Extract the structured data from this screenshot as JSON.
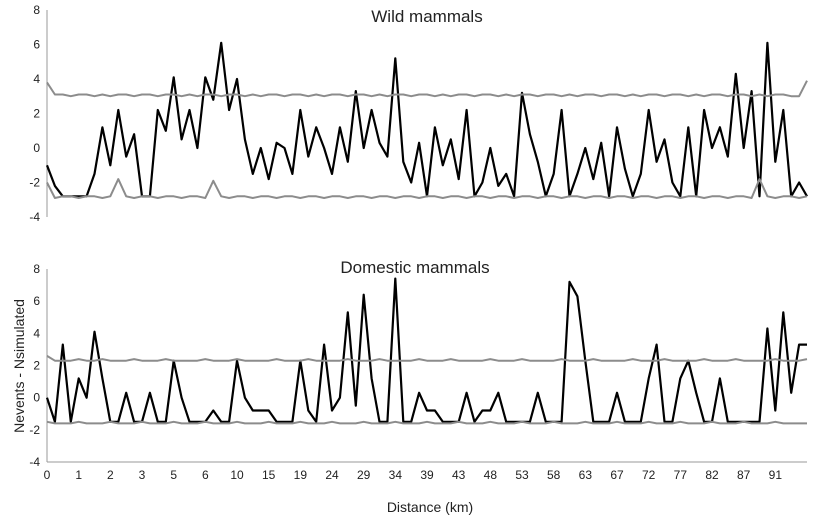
{
  "chart_data": [
    {
      "type": "line",
      "title": "Wild mammals",
      "xlabel": "",
      "ylabel": "",
      "ylim": [
        -4,
        8
      ],
      "yticks": [
        "-4",
        "-2",
        "0",
        "2",
        "4",
        "6",
        "8"
      ],
      "xlim": [
        0,
        96
      ],
      "grid": false,
      "x": [
        0,
        1,
        2,
        3,
        4,
        5,
        6,
        7,
        8,
        9,
        10,
        11,
        12,
        13,
        14,
        15,
        16,
        17,
        18,
        19,
        20,
        21,
        22,
        23,
        24,
        25,
        26,
        27,
        28,
        29,
        30,
        31,
        32,
        33,
        34,
        35,
        36,
        37,
        38,
        39,
        40,
        41,
        42,
        43,
        44,
        45,
        46,
        47,
        48,
        49,
        50,
        51,
        52,
        53,
        54,
        55,
        56,
        57,
        58,
        59,
        60,
        61,
        62,
        63,
        64,
        65,
        66,
        67,
        68,
        69,
        70,
        71,
        72,
        73,
        74,
        75,
        76,
        77,
        78,
        79,
        80,
        81,
        82,
        83,
        84,
        85,
        86,
        87,
        88,
        89,
        90,
        91,
        92,
        93,
        94,
        95,
        96
      ],
      "series": [
        {
          "name": "",
          "color": "#000000",
          "values": [
            -1.0,
            -2.2,
            -2.8,
            -2.8,
            -2.8,
            -2.8,
            -1.5,
            1.2,
            -1.0,
            2.2,
            -0.5,
            0.8,
            -2.8,
            -2.8,
            2.2,
            1.0,
            4.1,
            0.5,
            2.2,
            0.0,
            4.1,
            2.8,
            6.1,
            2.2,
            4.0,
            0.5,
            -1.5,
            0.0,
            -1.8,
            0.3,
            0.0,
            -1.5,
            2.2,
            -0.5,
            1.2,
            0.0,
            -1.5,
            1.2,
            -0.8,
            3.3,
            0.0,
            2.2,
            0.3,
            -0.5,
            5.2,
            -0.8,
            -2.0,
            0.3,
            -2.8,
            1.2,
            -1.0,
            0.5,
            -1.8,
            2.2,
            -2.8,
            -2.0,
            0.0,
            -2.2,
            -1.5,
            -2.8,
            3.2,
            0.8,
            -0.8,
            -2.8,
            -1.5,
            2.2,
            -2.8,
            -1.5,
            0.0,
            -1.8,
            0.3,
            -2.8,
            1.2,
            -1.2,
            -2.8,
            -1.5,
            2.2,
            -0.8,
            0.5,
            -2.0,
            -2.8,
            1.2,
            -2.8,
            2.2,
            0.0,
            1.2,
            -0.5,
            4.3,
            0.0,
            3.3,
            -2.8,
            6.1,
            -0.8,
            2.2,
            -2.8,
            -2.0,
            -2.8
          ]
        },
        {
          "name": "",
          "color": "#8c8c8c",
          "values": [
            3.8,
            3.1,
            3.1,
            3.0,
            3.1,
            3.1,
            3.0,
            3.1,
            3.0,
            3.1,
            3.1,
            3.0,
            3.1,
            3.1,
            3.0,
            3.1,
            3.1,
            3.0,
            3.1,
            3.0,
            3.1,
            3.1,
            3.0,
            3.1,
            3.1,
            3.0,
            3.1,
            3.0,
            3.1,
            3.1,
            3.0,
            3.1,
            3.1,
            3.0,
            3.1,
            3.0,
            3.1,
            3.1,
            3.0,
            3.1,
            3.1,
            3.0,
            3.1,
            3.0,
            3.1,
            3.1,
            3.0,
            3.1,
            3.1,
            3.0,
            3.1,
            3.0,
            3.1,
            3.1,
            3.0,
            3.1,
            3.1,
            3.0,
            3.1,
            3.0,
            3.1,
            3.1,
            3.0,
            3.1,
            3.1,
            3.0,
            3.1,
            3.0,
            3.1,
            3.1,
            3.0,
            3.1,
            3.1,
            3.0,
            3.1,
            3.0,
            3.1,
            3.1,
            3.0,
            3.1,
            3.1,
            3.0,
            3.1,
            3.0,
            3.1,
            3.1,
            3.0,
            3.1,
            3.1,
            3.0,
            3.1,
            3.0,
            3.1,
            3.1,
            3.0,
            3.0,
            3.9
          ]
        },
        {
          "name": "",
          "color": "#8c8c8c",
          "values": [
            -2.0,
            -2.9,
            -2.8,
            -2.8,
            -2.9,
            -2.8,
            -2.8,
            -2.9,
            -2.8,
            -1.8,
            -2.8,
            -2.9,
            -2.8,
            -2.8,
            -2.9,
            -2.8,
            -2.8,
            -2.9,
            -2.8,
            -2.8,
            -2.9,
            -1.9,
            -2.8,
            -2.9,
            -2.8,
            -2.8,
            -2.9,
            -2.8,
            -2.8,
            -2.9,
            -2.8,
            -2.8,
            -2.9,
            -2.8,
            -2.8,
            -2.9,
            -2.8,
            -2.8,
            -2.9,
            -2.8,
            -2.8,
            -2.9,
            -2.8,
            -2.8,
            -2.9,
            -2.8,
            -2.8,
            -2.9,
            -2.8,
            -2.8,
            -2.9,
            -2.8,
            -2.8,
            -2.9,
            -2.8,
            -2.8,
            -2.9,
            -2.8,
            -2.8,
            -2.9,
            -2.8,
            -2.8,
            -2.9,
            -2.8,
            -2.8,
            -2.9,
            -2.8,
            -2.8,
            -2.9,
            -2.8,
            -2.8,
            -2.9,
            -2.8,
            -2.8,
            -2.9,
            -2.8,
            -2.8,
            -2.9,
            -2.8,
            -2.8,
            -2.9,
            -2.8,
            -2.8,
            -2.9,
            -2.8,
            -2.8,
            -2.9,
            -2.8,
            -2.8,
            -2.9,
            -1.8,
            -2.8,
            -2.9,
            -2.8,
            -2.8,
            -2.9,
            -2.8
          ]
        }
      ]
    },
    {
      "type": "line",
      "title": "Domestic mammals",
      "xlabel": "Distance (km)",
      "ylabel": "Nevents - Nsimulated",
      "ylim": [
        -4,
        8
      ],
      "yticks": [
        "-4",
        "-2",
        "0",
        "2",
        "4",
        "6",
        "8"
      ],
      "xlim": [
        0,
        96
      ],
      "xticks": [
        "0",
        "1",
        "2",
        "3",
        "5",
        "6",
        "10",
        "15",
        "19",
        "24",
        "29",
        "34",
        "39",
        "43",
        "48",
        "53",
        "58",
        "63",
        "67",
        "72",
        "77",
        "82",
        "87",
        "91"
      ],
      "grid": false,
      "x": [
        0,
        1,
        2,
        3,
        4,
        5,
        6,
        7,
        8,
        9,
        10,
        11,
        12,
        13,
        14,
        15,
        16,
        17,
        18,
        19,
        20,
        21,
        22,
        23,
        24,
        25,
        26,
        27,
        28,
        29,
        30,
        31,
        32,
        33,
        34,
        35,
        36,
        37,
        38,
        39,
        40,
        41,
        42,
        43,
        44,
        45,
        46,
        47,
        48,
        49,
        50,
        51,
        52,
        53,
        54,
        55,
        56,
        57,
        58,
        59,
        60,
        61,
        62,
        63,
        64,
        65,
        66,
        67,
        68,
        69,
        70,
        71,
        72,
        73,
        74,
        75,
        76,
        77,
        78,
        79,
        80,
        81,
        82,
        83,
        84,
        85,
        86,
        87,
        88,
        89,
        90,
        91,
        92,
        93,
        94,
        95,
        96
      ],
      "series": [
        {
          "name": "",
          "color": "#000000",
          "values": [
            0.0,
            -1.5,
            3.3,
            -1.5,
            1.2,
            0.0,
            4.1,
            1.2,
            -1.5,
            -1.5,
            0.3,
            -1.5,
            -1.5,
            0.3,
            -1.5,
            -1.5,
            2.3,
            0.0,
            -1.5,
            -1.5,
            -1.5,
            -0.8,
            -1.5,
            -1.5,
            2.3,
            0.0,
            -0.8,
            -0.8,
            -0.8,
            -1.5,
            -1.5,
            -1.5,
            2.3,
            -0.8,
            -1.5,
            3.3,
            -0.8,
            0.0,
            5.3,
            -0.5,
            6.4,
            1.2,
            -1.5,
            -1.5,
            7.4,
            -1.5,
            -1.5,
            0.3,
            -0.8,
            -0.8,
            -1.5,
            -1.5,
            -1.5,
            0.3,
            -1.5,
            -0.8,
            -0.8,
            0.3,
            -1.5,
            -1.5,
            -1.5,
            -1.5,
            0.3,
            -1.5,
            -1.5,
            -1.5,
            7.2,
            6.3,
            2.3,
            -1.5,
            -1.5,
            -1.5,
            0.3,
            -1.5,
            -1.5,
            -1.5,
            1.2,
            3.3,
            -1.5,
            -1.5,
            1.2,
            2.3,
            0.3,
            -1.5,
            -1.5,
            1.2,
            -1.5,
            -1.5,
            -1.5,
            -1.5,
            -1.5,
            4.3,
            -0.8,
            5.3,
            0.3,
            3.3,
            3.3
          ]
        },
        {
          "name": "",
          "color": "#8c8c8c",
          "values": [
            2.6,
            2.3,
            2.3,
            2.3,
            2.4,
            2.3,
            2.3,
            2.4,
            2.3,
            2.3,
            2.3,
            2.4,
            2.3,
            2.3,
            2.3,
            2.4,
            2.3,
            2.3,
            2.3,
            2.3,
            2.4,
            2.3,
            2.3,
            2.3,
            2.4,
            2.3,
            2.3,
            2.3,
            2.3,
            2.4,
            2.3,
            2.3,
            2.3,
            2.4,
            2.3,
            2.3,
            2.3,
            2.3,
            2.4,
            2.3,
            2.3,
            2.3,
            2.4,
            2.3,
            2.3,
            2.3,
            2.3,
            2.4,
            2.3,
            2.3,
            2.3,
            2.4,
            2.3,
            2.3,
            2.3,
            2.3,
            2.4,
            2.3,
            2.3,
            2.3,
            2.4,
            2.3,
            2.3,
            2.3,
            2.3,
            2.4,
            2.3,
            2.3,
            2.3,
            2.4,
            2.3,
            2.3,
            2.3,
            2.3,
            2.4,
            2.3,
            2.3,
            2.3,
            2.4,
            2.3,
            2.3,
            2.3,
            2.3,
            2.4,
            2.3,
            2.3,
            2.3,
            2.4,
            2.3,
            2.3,
            2.3,
            2.3,
            2.4,
            2.3,
            2.3,
            2.3,
            2.4
          ]
        },
        {
          "name": "",
          "color": "#8c8c8c",
          "values": [
            -1.5,
            -1.6,
            -1.6,
            -1.6,
            -1.5,
            -1.6,
            -1.6,
            -1.6,
            -1.5,
            -1.6,
            -1.6,
            -1.6,
            -1.5,
            -1.6,
            -1.6,
            -1.6,
            -1.5,
            -1.6,
            -1.6,
            -1.6,
            -1.5,
            -1.6,
            -1.6,
            -1.6,
            -1.5,
            -1.6,
            -1.6,
            -1.6,
            -1.5,
            -1.6,
            -1.6,
            -1.6,
            -1.5,
            -1.6,
            -1.6,
            -1.6,
            -1.5,
            -1.6,
            -1.6,
            -1.6,
            -1.5,
            -1.6,
            -1.6,
            -1.6,
            -1.5,
            -1.6,
            -1.6,
            -1.6,
            -1.5,
            -1.6,
            -1.6,
            -1.6,
            -1.5,
            -1.6,
            -1.6,
            -1.6,
            -1.5,
            -1.6,
            -1.6,
            -1.6,
            -1.5,
            -1.6,
            -1.6,
            -1.6,
            -1.5,
            -1.6,
            -1.6,
            -1.6,
            -1.5,
            -1.6,
            -1.6,
            -1.6,
            -1.5,
            -1.6,
            -1.6,
            -1.6,
            -1.5,
            -1.6,
            -1.6,
            -1.6,
            -1.5,
            -1.6,
            -1.6,
            -1.6,
            -1.5,
            -1.6,
            -1.6,
            -1.6,
            -1.5,
            -1.6,
            -1.6,
            -1.6,
            -1.5,
            -1.6,
            -1.6,
            -1.6,
            -1.6
          ]
        }
      ]
    }
  ]
}
